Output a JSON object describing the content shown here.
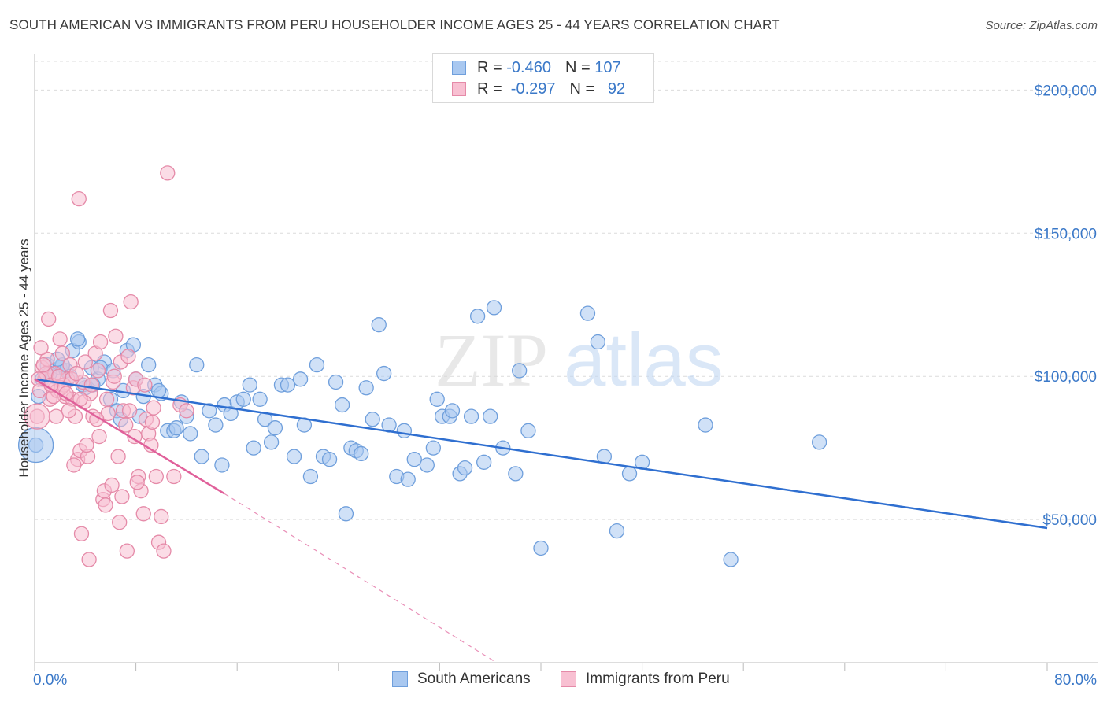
{
  "header": {
    "title": "SOUTH AMERICAN VS IMMIGRANTS FROM PERU HOUSEHOLDER INCOME AGES 25 - 44 YEARS CORRELATION CHART",
    "source": "Source: ZipAtlas.com"
  },
  "watermark": {
    "zip": "ZIP",
    "atlas": "atlas"
  },
  "legend_top": {
    "rows": [
      {
        "r_label": "R = ",
        "r_value": "-0.460",
        "n_label": "N = ",
        "n_value": "107",
        "color": "#a9c8f0",
        "border": "#6f9fdc"
      },
      {
        "r_label": "R = ",
        "r_value": " -0.297",
        "n_label": "N = ",
        "n_value": "  92",
        "color": "#f8c0d2",
        "border": "#e58aa8"
      }
    ]
  },
  "legend_bottom": {
    "items": [
      {
        "label": "South Americans",
        "color": "#a9c8f0",
        "border": "#6f9fdc"
      },
      {
        "label": "Immigrants from Peru",
        "color": "#f8c0d2",
        "border": "#e58aa8"
      }
    ]
  },
  "chart_data": {
    "type": "scatter",
    "title": "SOUTH AMERICAN VS IMMIGRANTS FROM PERU HOUSEHOLDER INCOME AGES 25 - 44 YEARS CORRELATION CHART",
    "xlabel": "",
    "ylabel": "Householder Income Ages 25 - 44 years",
    "xlim": [
      0,
      80
    ],
    "ylim": [
      0,
      210000
    ],
    "x_tick_labels": [
      "0.0%",
      "80.0%"
    ],
    "y_ticks": [
      50000,
      100000,
      150000,
      200000
    ],
    "y_tick_labels": [
      "$50,000",
      "$100,000",
      "$150,000",
      "$200,000"
    ],
    "grid": "horizontal dashed",
    "legend_placement": "top-center and bottom",
    "series": [
      {
        "name": "South Americans",
        "color": "#a9c8f0",
        "stroke": "#6f9fdc",
        "trend": {
          "x": [
            0,
            80
          ],
          "y": [
            99000,
            47000
          ],
          "color": "#2f6fd0"
        },
        "points": [
          [
            0.1,
            76000
          ],
          [
            0.3,
            93000
          ],
          [
            0.6,
            99000
          ],
          [
            1.0,
            104000
          ],
          [
            1.5,
            100000
          ],
          [
            2.0,
            103000
          ],
          [
            2.5,
            102000
          ],
          [
            3.0,
            109000
          ],
          [
            3.5,
            112000
          ],
          [
            1.2,
            101000
          ],
          [
            4.0,
            96000
          ],
          [
            4.5,
            103000
          ],
          [
            5.0,
            99000
          ],
          [
            5.5,
            105000
          ],
          [
            6.0,
            92000
          ],
          [
            6.5,
            88000
          ],
          [
            7.0,
            95000
          ],
          [
            7.3,
            109000
          ],
          [
            7.8,
            111000
          ],
          [
            8.3,
            86000
          ],
          [
            8.6,
            93000
          ],
          [
            9.0,
            104000
          ],
          [
            9.5,
            97000
          ],
          [
            10.0,
            94000
          ],
          [
            10.5,
            81000
          ],
          [
            11.0,
            81000
          ],
          [
            11.6,
            91000
          ],
          [
            12.0,
            86000
          ],
          [
            12.3,
            80000
          ],
          [
            12.8,
            104000
          ],
          [
            13.2,
            72000
          ],
          [
            13.8,
            88000
          ],
          [
            14.3,
            83000
          ],
          [
            14.8,
            69000
          ],
          [
            15.0,
            90000
          ],
          [
            15.5,
            87000
          ],
          [
            16.0,
            91000
          ],
          [
            16.5,
            92000
          ],
          [
            17.0,
            97000
          ],
          [
            17.3,
            75000
          ],
          [
            17.8,
            92000
          ],
          [
            18.2,
            85000
          ],
          [
            18.7,
            77000
          ],
          [
            19.0,
            82000
          ],
          [
            19.5,
            97000
          ],
          [
            20.0,
            97000
          ],
          [
            20.5,
            72000
          ],
          [
            21.0,
            99000
          ],
          [
            21.3,
            83000
          ],
          [
            21.8,
            65000
          ],
          [
            22.3,
            104000
          ],
          [
            22.8,
            72000
          ],
          [
            23.3,
            71000
          ],
          [
            23.8,
            98000
          ],
          [
            24.3,
            90000
          ],
          [
            24.6,
            52000
          ],
          [
            25.0,
            75000
          ],
          [
            25.4,
            74000
          ],
          [
            25.8,
            73000
          ],
          [
            26.2,
            96000
          ],
          [
            26.7,
            85000
          ],
          [
            27.2,
            118000
          ],
          [
            27.6,
            101000
          ],
          [
            28.0,
            83000
          ],
          [
            28.6,
            65000
          ],
          [
            29.2,
            81000
          ],
          [
            29.5,
            64000
          ],
          [
            30.0,
            71000
          ],
          [
            31.0,
            69000
          ],
          [
            31.5,
            75000
          ],
          [
            31.8,
            92000
          ],
          [
            32.2,
            86000
          ],
          [
            32.8,
            86000
          ],
          [
            33.0,
            88000
          ],
          [
            33.6,
            66000
          ],
          [
            34.0,
            68000
          ],
          [
            34.5,
            86000
          ],
          [
            35.0,
            121000
          ],
          [
            35.5,
            70000
          ],
          [
            36.0,
            86000
          ],
          [
            36.3,
            124000
          ],
          [
            37.0,
            75000
          ],
          [
            38.0,
            66000
          ],
          [
            38.3,
            102000
          ],
          [
            39.0,
            81000
          ],
          [
            40.0,
            40000
          ],
          [
            43.7,
            122000
          ],
          [
            44.5,
            112000
          ],
          [
            45.0,
            72000
          ],
          [
            46.0,
            46000
          ],
          [
            47.0,
            66000
          ],
          [
            48.0,
            70000
          ],
          [
            53.0,
            83000
          ],
          [
            55.0,
            36000
          ],
          [
            62.0,
            77000
          ],
          [
            3.8,
            97000
          ],
          [
            5.2,
            103000
          ],
          [
            6.8,
            85000
          ],
          [
            9.8,
            95000
          ],
          [
            11.2,
            82000
          ],
          [
            2.8,
            100000
          ],
          [
            4.6,
            97000
          ],
          [
            3.4,
            113000
          ],
          [
            6.2,
            102000
          ],
          [
            2.2,
            104000
          ],
          [
            1.8,
            106000
          ],
          [
            8.0,
            99000
          ]
        ]
      },
      {
        "name": "Immigrants from Peru",
        "color": "#f8c0d2",
        "stroke": "#e58aa8",
        "trend": {
          "x": [
            0,
            15
          ],
          "y": [
            99000,
            59000
          ],
          "color": "#e0609a",
          "dashed_to": [
            36.5,
            0
          ]
        },
        "points": [
          [
            0.2,
            86000
          ],
          [
            0.4,
            95000
          ],
          [
            0.6,
            103000
          ],
          [
            0.8,
            99000
          ],
          [
            1.0,
            106000
          ],
          [
            1.2,
            92000
          ],
          [
            1.4,
            97000
          ],
          [
            1.6,
            101000
          ],
          [
            1.8,
            95000
          ],
          [
            2.0,
            113000
          ],
          [
            2.2,
            108000
          ],
          [
            2.4,
            93000
          ],
          [
            2.6,
            99000
          ],
          [
            2.8,
            104000
          ],
          [
            3.0,
            92000
          ],
          [
            3.2,
            86000
          ],
          [
            3.4,
            71000
          ],
          [
            3.6,
            74000
          ],
          [
            3.8,
            98000
          ],
          [
            4.0,
            105000
          ],
          [
            4.2,
            72000
          ],
          [
            4.4,
            94000
          ],
          [
            4.6,
            86000
          ],
          [
            4.8,
            108000
          ],
          [
            5.0,
            102000
          ],
          [
            5.2,
            112000
          ],
          [
            5.4,
            57000
          ],
          [
            5.6,
            55000
          ],
          [
            5.8,
            87000
          ],
          [
            6.0,
            123000
          ],
          [
            6.2,
            98000
          ],
          [
            6.4,
            114000
          ],
          [
            6.6,
            72000
          ],
          [
            6.8,
            105000
          ],
          [
            7.0,
            88000
          ],
          [
            7.2,
            83000
          ],
          [
            7.4,
            107000
          ],
          [
            7.6,
            126000
          ],
          [
            7.8,
            96000
          ],
          [
            8.0,
            99000
          ],
          [
            8.2,
            65000
          ],
          [
            8.4,
            60000
          ],
          [
            8.6,
            52000
          ],
          [
            8.8,
            85000
          ],
          [
            9.0,
            80000
          ],
          [
            9.2,
            76000
          ],
          [
            9.4,
            89000
          ],
          [
            9.6,
            65000
          ],
          [
            9.8,
            42000
          ],
          [
            10.0,
            51000
          ],
          [
            10.2,
            39000
          ],
          [
            10.5,
            171000
          ],
          [
            11.0,
            65000
          ],
          [
            11.5,
            90000
          ],
          [
            12.0,
            88000
          ],
          [
            3.5,
            162000
          ],
          [
            0.5,
            110000
          ],
          [
            1.1,
            120000
          ],
          [
            1.7,
            86000
          ],
          [
            2.3,
            97000
          ],
          [
            2.9,
            99000
          ],
          [
            3.3,
            101000
          ],
          [
            3.9,
            91000
          ],
          [
            4.5,
            97000
          ],
          [
            5.1,
            79000
          ],
          [
            5.7,
            92000
          ],
          [
            6.3,
            100000
          ],
          [
            6.9,
            58000
          ],
          [
            7.5,
            88000
          ],
          [
            8.1,
            63000
          ],
          [
            8.7,
            97000
          ],
          [
            9.3,
            84000
          ],
          [
            0.9,
            101000
          ],
          [
            1.5,
            93000
          ],
          [
            2.1,
            96000
          ],
          [
            2.7,
            88000
          ],
          [
            3.1,
            69000
          ],
          [
            3.7,
            45000
          ],
          [
            4.3,
            36000
          ],
          [
            4.9,
            85000
          ],
          [
            5.5,
            60000
          ],
          [
            6.1,
            62000
          ],
          [
            6.7,
            49000
          ],
          [
            7.3,
            39000
          ],
          [
            7.9,
            79000
          ],
          [
            0.3,
            99000
          ],
          [
            0.7,
            104000
          ],
          [
            1.3,
            97000
          ],
          [
            1.9,
            100000
          ],
          [
            2.5,
            94000
          ],
          [
            3.6,
            92000
          ],
          [
            4.1,
            76000
          ]
        ]
      }
    ]
  }
}
